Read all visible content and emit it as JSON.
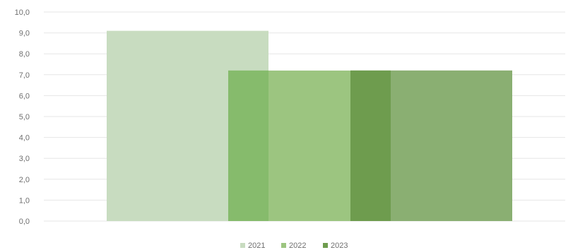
{
  "chart_data": {
    "type": "bar",
    "ylim": [
      0,
      10
    ],
    "y_ticks": [
      "0,0",
      "1,0",
      "2,0",
      "3,0",
      "4,0",
      "5,0",
      "6,0",
      "7,0",
      "8,0",
      "9,0",
      "10,0"
    ],
    "grid": true,
    "legend_position": "bottom",
    "series": [
      {
        "name": "2021",
        "values": [
          9.1
        ],
        "color": "#c8dcc0"
      },
      {
        "name": "2022",
        "values": [
          7.2
        ],
        "color": "#9cc580"
      },
      {
        "name": "2023",
        "values": [
          7.2
        ],
        "color": "#6e9c4e"
      }
    ],
    "overlap_colors": [
      "#86bb6c",
      "#8aaf72"
    ]
  }
}
